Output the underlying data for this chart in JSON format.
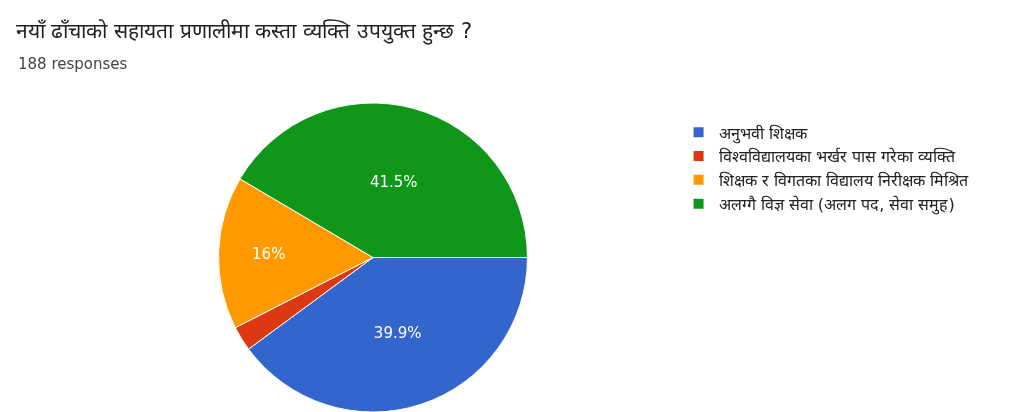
{
  "chart_data": {
    "type": "pie",
    "title": "नयाँ ढाँचाको सहायता प्रणालीमा कस्ता व्यक्ति उपयुक्त हुन्छ ?",
    "subtitle": "188 responses",
    "categories": [
      "अनुभवी शिक्षक",
      "विश्वविद्यालयका भर्खर पास गरेका व्यक्ति",
      "शिक्षक र विगतका विद्यालय निरीक्षक मिश्रित",
      "अलग्गै विज्ञ सेवा (अलग पद, सेवा समुह)"
    ],
    "values": [
      39.9,
      2.6,
      16,
      41.5
    ],
    "value_labels": [
      "39.9%",
      null,
      "16%",
      "41.5%"
    ],
    "colors": [
      "#3366cc",
      "#dc3912",
      "#ff9900",
      "#109618"
    ],
    "legend": "right"
  }
}
